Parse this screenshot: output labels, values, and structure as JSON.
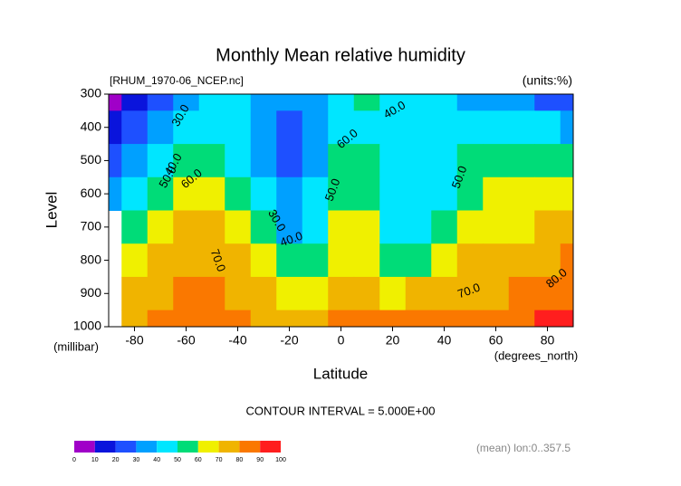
{
  "chart_data": {
    "type": "contour",
    "title": "Monthly Mean relative humidity",
    "source": "[RHUM_1970-06_NCEP.nc]",
    "units": "(units:%)",
    "y_label": "Level",
    "y_unit": "(millibar)",
    "x_label": "Latitude",
    "x_unit": "(degrees_north)",
    "contour_interval": "CONTOUR INTERVAL = 5.000E+00",
    "footnote": "(mean) lon:0..357.5",
    "xlim": [
      -90,
      90
    ],
    "xticks": [
      -80,
      -60,
      -40,
      -20,
      0,
      20,
      40,
      60,
      80
    ],
    "ylim": [
      1000,
      300
    ],
    "yticks": [
      300,
      400,
      500,
      600,
      700,
      800,
      900,
      1000
    ],
    "x": [
      -90,
      -80,
      -70,
      -60,
      -50,
      -40,
      -30,
      -20,
      -10,
      0,
      10,
      20,
      30,
      40,
      50,
      60,
      70,
      80,
      90
    ],
    "levels": [
      300,
      400,
      500,
      600,
      700,
      800,
      900,
      1000
    ],
    "values": [
      [
        5,
        15,
        25,
        35,
        40,
        45,
        35,
        30,
        35,
        45,
        55,
        45,
        45,
        40,
        35,
        35,
        30,
        25,
        20
      ],
      [
        15,
        25,
        35,
        40,
        45,
        40,
        30,
        25,
        30,
        40,
        45,
        40,
        40,
        40,
        40,
        45,
        45,
        40,
        35
      ],
      [
        25,
        35,
        45,
        55,
        55,
        45,
        35,
        25,
        35,
        50,
        55,
        45,
        40,
        45,
        50,
        55,
        55,
        50,
        50
      ],
      [
        35,
        45,
        55,
        65,
        65,
        55,
        40,
        30,
        40,
        55,
        55,
        45,
        40,
        45,
        55,
        60,
        60,
        60,
        65
      ],
      [
        null,
        55,
        65,
        70,
        70,
        65,
        50,
        35,
        45,
        60,
        60,
        45,
        45,
        55,
        65,
        65,
        65,
        70,
        70
      ],
      [
        null,
        65,
        75,
        75,
        75,
        70,
        60,
        50,
        55,
        65,
        65,
        55,
        55,
        65,
        70,
        70,
        75,
        75,
        80
      ],
      [
        null,
        70,
        75,
        80,
        80,
        75,
        70,
        65,
        65,
        70,
        70,
        65,
        70,
        70,
        75,
        75,
        80,
        85,
        85
      ],
      [
        null,
        70,
        80,
        85,
        85,
        80,
        75,
        75,
        75,
        80,
        85,
        80,
        80,
        80,
        80,
        80,
        85,
        90,
        95
      ]
    ],
    "contour_labels": [
      {
        "value": 30,
        "label": "30.0"
      },
      {
        "value": 40,
        "label": "40.0"
      },
      {
        "value": 50,
        "label": "50.0"
      },
      {
        "value": 60,
        "label": "60.0"
      },
      {
        "value": 70,
        "label": "70.0"
      },
      {
        "value": 30,
        "label": "30.0"
      },
      {
        "value": 40,
        "label": "40.0"
      },
      {
        "value": 50,
        "label": "50.0"
      },
      {
        "value": 60,
        "label": "60.0"
      },
      {
        "value": 40,
        "label": "40.0"
      },
      {
        "value": 50,
        "label": "50.0"
      },
      {
        "value": 70,
        "label": "70.0"
      },
      {
        "value": 80,
        "label": "80.0"
      }
    ],
    "colorbar": {
      "levels": [
        0,
        10,
        20,
        30,
        40,
        50,
        60,
        70,
        80,
        90,
        100
      ],
      "colors": [
        "#a000c8",
        "#0a14dc",
        "#1e50ff",
        "#00a0ff",
        "#00e6ff",
        "#00dc78",
        "#f0f000",
        "#f0b400",
        "#fa7800",
        "#ff1e1e"
      ]
    }
  }
}
